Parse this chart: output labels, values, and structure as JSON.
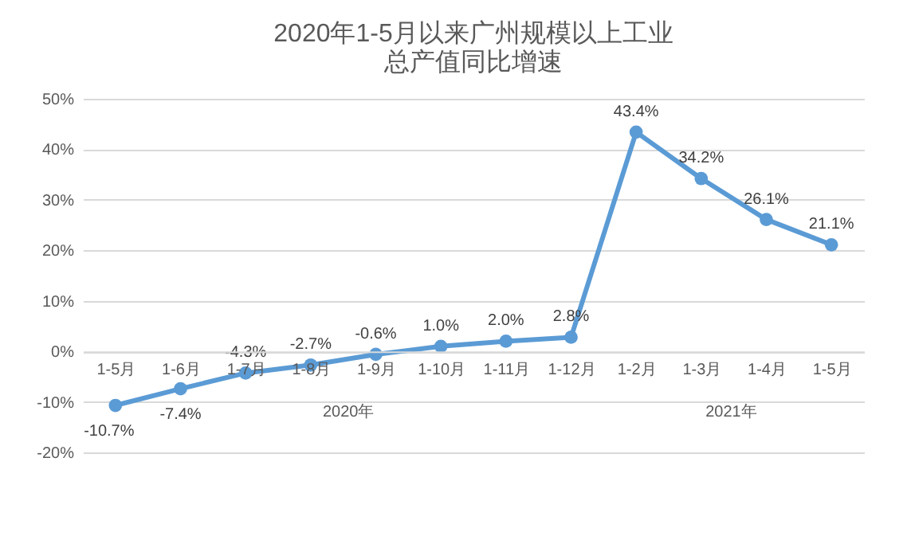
{
  "chart_data": {
    "type": "line",
    "title": "2020年1-5月以来广州规模以上工业总产值同比增速",
    "categories": [
      "1-5月",
      "1-6月",
      "1-7月",
      "1-8月",
      "1-9月",
      "1-10月",
      "1-11月",
      "1-12月",
      "1-2月",
      "1-3月",
      "1-4月",
      "1-5月"
    ],
    "series": [
      {
        "color": "#5b9bd5",
        "values": [
          -10.7,
          -7.4,
          -4.3,
          -2.7,
          -0.6,
          1.0,
          2.0,
          2.8,
          43.4,
          34.2,
          26.1,
          21.1
        ],
        "value_labels": [
          "-10.7%",
          "-7.4%",
          "-4.3%",
          "-2.7%",
          "-0.6%",
          "1.0%",
          "2.0%",
          "2.8%",
          "43.4%",
          "34.2%",
          "26.1%",
          "21.1%"
        ]
      }
    ],
    "ylim": [
      -20,
      50
    ],
    "yticks": [
      {
        "value": -20,
        "label": "-20%"
      },
      {
        "value": -10,
        "label": "-10%"
      },
      {
        "value": 0,
        "label": "0%"
      },
      {
        "value": 10,
        "label": "10%"
      },
      {
        "value": 20,
        "label": "20%"
      },
      {
        "value": 30,
        "label": "30%"
      },
      {
        "value": 40,
        "label": "40%"
      },
      {
        "value": 50,
        "label": "50%"
      }
    ],
    "grid": "y",
    "marker": "circle",
    "line_style": "solid",
    "annotations": [
      "2020年",
      "2021年"
    ]
  }
}
